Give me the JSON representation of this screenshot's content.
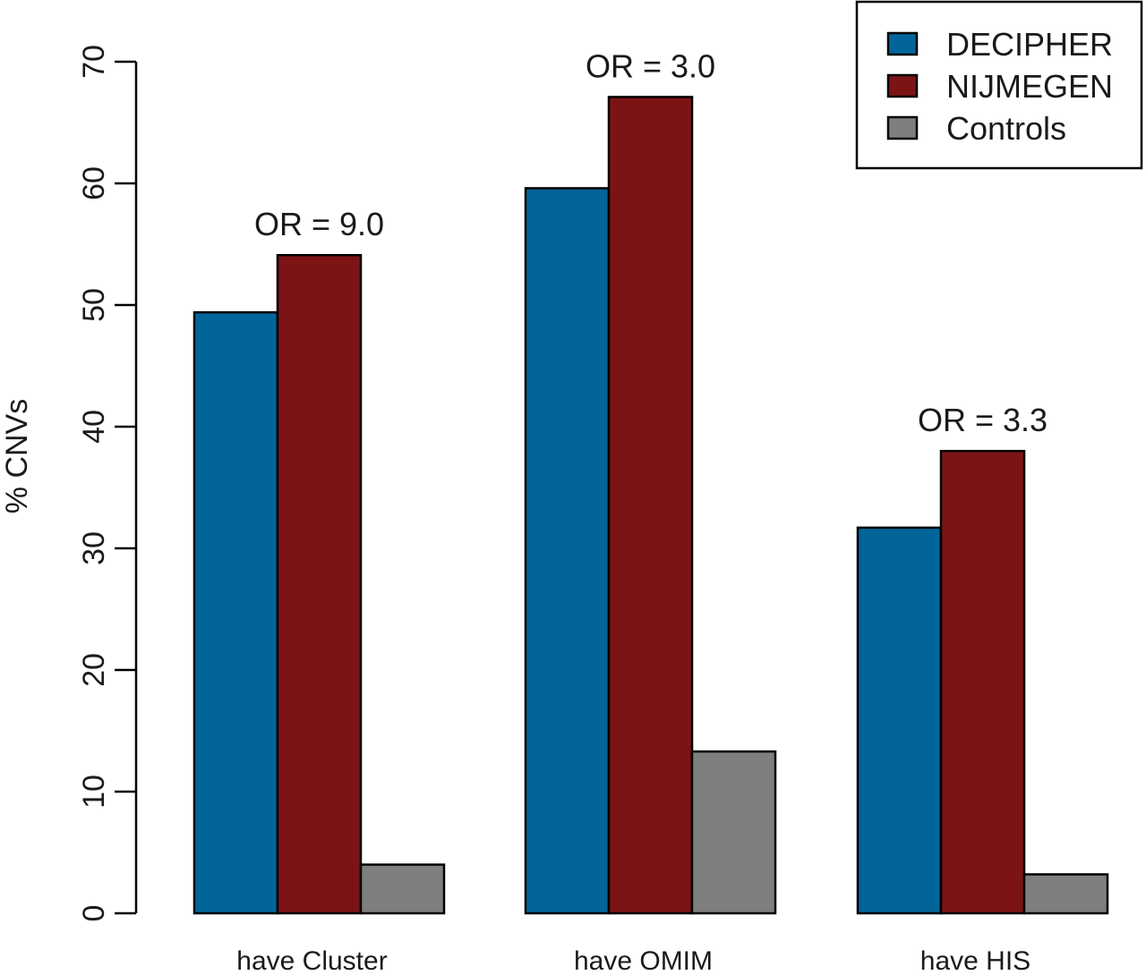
{
  "chart_data": {
    "type": "bar",
    "categories": [
      "have Cluster",
      "have OMIM",
      "have HIS"
    ],
    "series": [
      {
        "name": "DECIPHER",
        "color": "#02659a",
        "values": [
          49.4,
          59.6,
          31.7
        ]
      },
      {
        "name": "NIJMEGEN",
        "color": "#7c1416",
        "values": [
          54.1,
          67.1,
          38.0
        ]
      },
      {
        "name": "Controls",
        "color": "#7f7f7f",
        "values": [
          4.0,
          13.3,
          3.2
        ]
      }
    ],
    "annotations": [
      "OR = 9.0",
      "OR = 3.0",
      "OR = 3.3"
    ],
    "ylabel": "% CNVs",
    "ylim": [
      0,
      70
    ],
    "yticks": [
      0,
      10,
      20,
      30,
      40,
      50,
      60,
      70
    ],
    "legend_position": "top-right",
    "grid": false
  }
}
